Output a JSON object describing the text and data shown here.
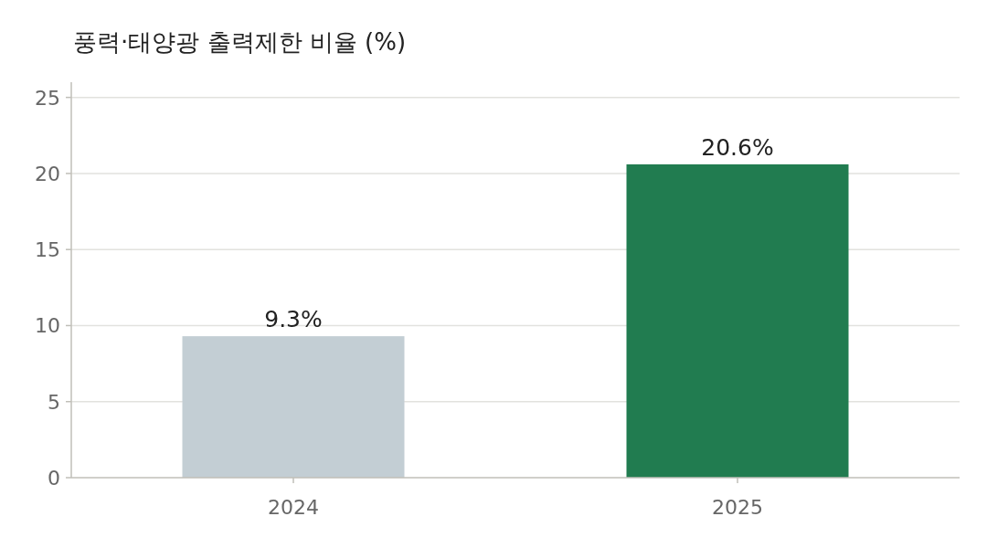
{
  "chart_data": {
    "type": "bar",
    "title": "풍력·태양광 출력제한 비율 (%)",
    "categories": [
      "2024",
      "2025"
    ],
    "values": [
      9.3,
      20.6
    ],
    "colors": [
      "#c3ced4",
      "#217c50"
    ],
    "value_labels": [
      "9.3%",
      "20.6%"
    ],
    "ylim": [
      0,
      26
    ],
    "yticks": [
      0,
      5,
      10,
      15,
      20,
      25
    ],
    "grid": "y"
  }
}
